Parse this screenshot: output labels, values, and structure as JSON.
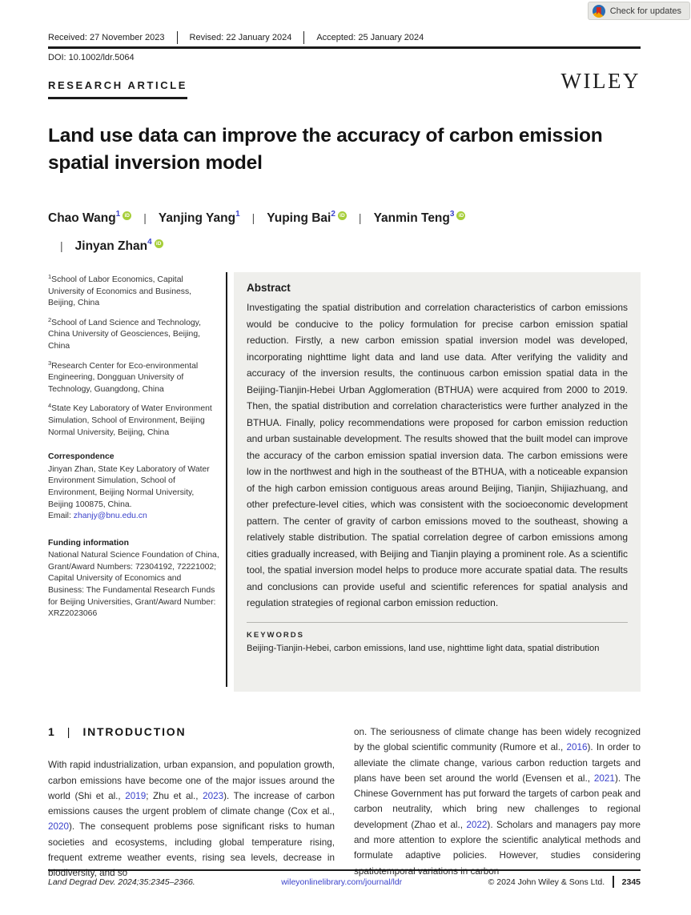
{
  "badge": {
    "label": "Check for updates"
  },
  "masthead": {
    "received": "Received: 27 November 2023",
    "revised": "Revised: 22 January 2024",
    "accepted": "Accepted: 25 January 2024",
    "doi": "DOI: 10.1002/ldr.5064",
    "article_type": "RESEARCH ARTICLE",
    "publisher": "WILEY"
  },
  "title": "Land use data can improve the accuracy of carbon emission spatial inversion model",
  "authors": [
    {
      "name": "Chao Wang",
      "sup": "1",
      "orcid": true
    },
    {
      "name": "Yanjing Yang",
      "sup": "1",
      "orcid": false
    },
    {
      "name": "Yuping Bai",
      "sup": "2",
      "orcid": true
    },
    {
      "name": "Yanmin Teng",
      "sup": "3",
      "orcid": true
    },
    {
      "name": "Jinyan Zhan",
      "sup": "4",
      "orcid": true
    }
  ],
  "orcid_icon_text": "iD",
  "author_separator": "|",
  "affiliations": [
    {
      "sup": "1",
      "text": "School of Labor Economics, Capital University of Economics and Business, Beijing, China"
    },
    {
      "sup": "2",
      "text": "School of Land Science and Technology, China University of Geosciences, Beijing, China"
    },
    {
      "sup": "3",
      "text": "Research Center for Eco-environmental Engineering, Dongguan University of Technology, Guangdong, China"
    },
    {
      "sup": "4",
      "text": "State Key Laboratory of Water Environment Simulation, School of Environment, Beijing Normal University, Beijing, China"
    }
  ],
  "correspondence": {
    "heading": "Correspondence",
    "text": "Jinyan Zhan, State Key Laboratory of Water Environment Simulation, School of Environment, Beijing Normal University, Beijing 100875, China.",
    "email_label": "Email: ",
    "email": "zhanjy@bnu.edu.cn"
  },
  "funding": {
    "heading": "Funding information",
    "text": "National Natural Science Foundation of China, Grant/Award Numbers: 72304192, 72221002; Capital University of Economics and Business: The Fundamental Research Funds for Beijing Universities, Grant/Award Number: XRZ2023066"
  },
  "abstract": {
    "heading": "Abstract",
    "body": "Investigating the spatial distribution and correlation characteristics of carbon emissions would be conducive to the policy formulation for precise carbon emission spatial reduction. Firstly, a new carbon emission spatial inversion model was developed, incorporating nighttime light data and land use data. After verifying the validity and accuracy of the inversion results, the continuous carbon emission spatial data in the Beijing-Tianjin-Hebei Urban Agglomeration (BTHUA) were acquired from 2000 to 2019. Then, the spatial distribution and correlation characteristics were further analyzed in the BTHUA. Finally, policy recommendations were proposed for carbon emission reduction and urban sustainable development. The results showed that the built model can improve the accuracy of the carbon emission spatial inversion data. The carbon emissions were low in the northwest and high in the southeast of the BTHUA, with a noticeable expansion of the high carbon emission contiguous areas around Beijing, Tianjin, Shijiazhuang, and other prefecture-level cities, which was consistent with the socioeconomic development pattern. The center of gravity of carbon emissions moved to the southeast, showing a relatively stable distribution. The spatial correlation degree of carbon emissions among cities gradually increased, with Beijing and Tianjin playing a prominent role. As a scientific tool, the spatial inversion model helps to produce more accurate spatial data. The results and conclusions can provide useful and scientific references for spatial analysis and regulation strategies of regional carbon emission reduction.",
    "keywords_heading": "KEYWORDS",
    "keywords": "Beijing-Tianjin-Hebei, carbon emissions, land use, nighttime light data, spatial distribution"
  },
  "intro": {
    "number": "1",
    "pipe": "|",
    "heading": "INTRODUCTION",
    "left_paragraph": [
      {
        "t": "With rapid industrialization, urban expansion, and population growth, carbon emissions have become one of the major issues around the world (Shi et al., "
      },
      {
        "t": "2019",
        "link": true
      },
      {
        "t": "; Zhu et al., "
      },
      {
        "t": "2023",
        "link": true
      },
      {
        "t": "). The increase of carbon emissions causes the urgent problem of climate change (Cox et al., "
      },
      {
        "t": "2020",
        "link": true
      },
      {
        "t": "). The consequent problems pose significant risks to human societies and ecosystems, including global temperature rising, frequent extreme weather events, rising sea levels, decrease in biodiversity, and so"
      }
    ],
    "right_paragraph": [
      {
        "t": "on. The seriousness of climate change has been widely recognized by the global scientific community (Rumore et al., "
      },
      {
        "t": "2016",
        "link": true
      },
      {
        "t": "). In order to alleviate the climate change, various carbon reduction targets and plans have been set around the world (Evensen et al., "
      },
      {
        "t": "2021",
        "link": true
      },
      {
        "t": "). The Chinese Government has put forward the targets of carbon peak and carbon neutrality, which bring new challenges to regional development (Zhao et al., "
      },
      {
        "t": "2022",
        "link": true
      },
      {
        "t": "). Scholars and managers pay more and more attention to explore the scientific analytical methods and formulate adaptive policies. However, studies considering spatiotemporal variations in carbon"
      }
    ]
  },
  "footer": {
    "citation": "Land Degrad Dev. 2024;35:2345–2366.",
    "link": "wileyonlinelibrary.com/journal/ldr",
    "copyright": "© 2024 John Wiley & Sons Ltd.",
    "page": "2345"
  },
  "colors": {
    "link": "#3b43cb",
    "orcid": "#a6ce39",
    "abstract_bg": "#efefec"
  }
}
